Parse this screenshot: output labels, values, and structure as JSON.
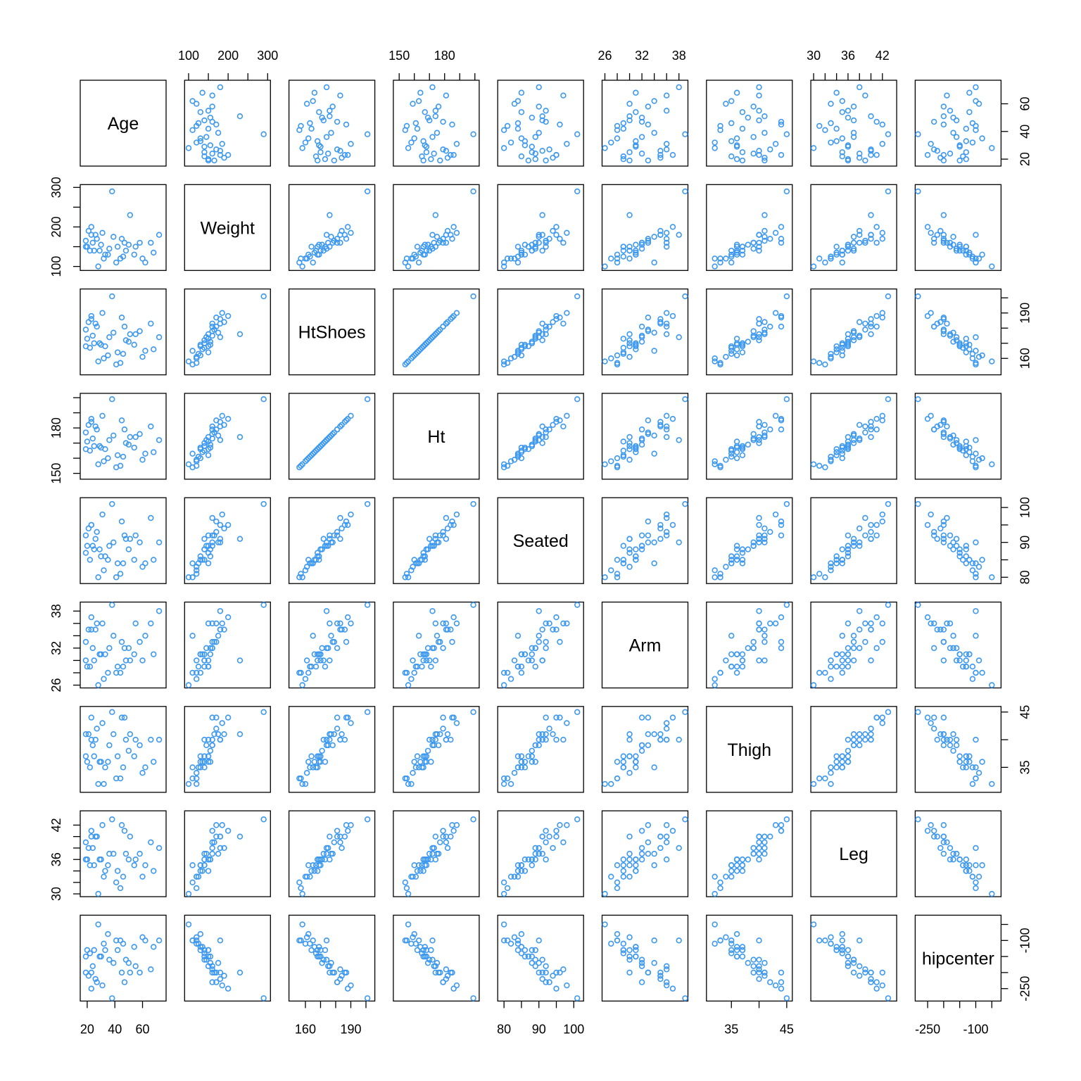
{
  "chart_data": {
    "type": "scatter",
    "variables": [
      {
        "name": "Age",
        "range": [
          17,
          75
        ],
        "ticks": [
          20,
          40,
          60
        ],
        "tick_labels": [
          "20",
          "40",
          "60"
        ]
      },
      {
        "name": "Weight",
        "range": [
          97,
          300
        ],
        "ticks": [
          100,
          150,
          200,
          250,
          300
        ],
        "tick_labels": [
          "100",
          "",
          "200",
          "",
          "300"
        ]
      },
      {
        "name": "HtShoes",
        "range": [
          151,
          204
        ],
        "ticks": [
          160,
          170,
          180,
          190,
          200
        ],
        "tick_labels": [
          "160",
          "",
          "",
          "190",
          ""
        ]
      },
      {
        "name": "Ht",
        "range": [
          148,
          201
        ],
        "ticks": [
          150,
          160,
          170,
          180,
          190,
          200
        ],
        "tick_labels": [
          "150",
          "",
          "",
          "180",
          "",
          ""
        ]
      },
      {
        "name": "Seated",
        "range": [
          79,
          102
        ],
        "ticks": [
          80,
          85,
          90,
          95,
          100
        ],
        "tick_labels": [
          "80",
          "",
          "90",
          "",
          "100"
        ]
      },
      {
        "name": "Arm",
        "range": [
          26,
          39
        ],
        "ticks": [
          26,
          28,
          30,
          32,
          34,
          36,
          38
        ],
        "tick_labels": [
          "26",
          "",
          "",
          "32",
          "",
          "",
          "38"
        ]
      },
      {
        "name": "Thigh",
        "range": [
          31,
          45.5
        ],
        "ticks": [
          35,
          40,
          45
        ],
        "tick_labels": [
          "35",
          "",
          "45"
        ]
      },
      {
        "name": "Leg",
        "range": [
          30,
          44
        ],
        "ticks": [
          30,
          32,
          34,
          36,
          38,
          40,
          42
        ],
        "tick_labels": [
          "30",
          "",
          "",
          "36",
          "",
          "",
          "42"
        ]
      },
      {
        "name": "hipcenter",
        "range": [
          -280,
          -30
        ],
        "ticks": [
          -250,
          -200,
          -150,
          -100,
          -50
        ],
        "tick_labels": [
          "-250",
          "",
          "",
          "-100",
          ""
        ]
      }
    ],
    "point_color": "#3d98f0",
    "grid": false,
    "records": [
      [
        23,
        180,
        186,
        184,
        95,
        35,
        40,
        40,
        -200
      ],
      [
        29,
        140,
        170,
        168,
        88,
        31,
        36,
        36,
        -150
      ],
      [
        44,
        120,
        157,
        155,
        81,
        28,
        33,
        31,
        -100
      ],
      [
        58,
        160,
        178,
        176,
        90,
        33,
        39,
        37,
        -200
      ],
      [
        38,
        290,
        201,
        199,
        101,
        39,
        45,
        43,
        -280
      ],
      [
        19,
        150,
        168,
        166,
        87,
        30,
        37,
        36,
        -150
      ],
      [
        62,
        110,
        165,
        163,
        84,
        34,
        35,
        35,
        -100
      ],
      [
        27,
        170,
        181,
        179,
        93,
        36,
        42,
        40,
        -230
      ],
      [
        51,
        230,
        176,
        174,
        91,
        30,
        41,
        40,
        -200
      ],
      [
        72,
        180,
        174,
        172,
        90,
        38,
        40,
        38,
        -100
      ],
      [
        25,
        140,
        170,
        168,
        88,
        30,
        37,
        35,
        -130
      ],
      [
        20,
        150,
        173,
        171,
        89,
        29,
        36,
        36,
        -130
      ],
      [
        32,
        120,
        160,
        158,
        82,
        27,
        32,
        33,
        -110
      ],
      [
        41,
        110,
        156,
        154,
        80,
        28,
        33,
        32,
        -100
      ],
      [
        47,
        160,
        181,
        179,
        92,
        32,
        44,
        41,
        -230
      ],
      [
        35,
        130,
        162,
        160,
        85,
        28,
        36,
        35,
        -80
      ],
      [
        55,
        150,
        176,
        174,
        92,
        36,
        40,
        36,
        -180
      ],
      [
        22,
        140,
        167,
        165,
        85,
        29,
        35,
        35,
        -140
      ],
      [
        30,
        155,
        169,
        167,
        86,
        31,
        36,
        36,
        -150
      ],
      [
        66,
        160,
        183,
        181,
        97,
        36,
        40,
        39,
        -190
      ],
      [
        45,
        170,
        187,
        185,
        96,
        33,
        44,
        42,
        -200
      ],
      [
        21,
        190,
        184,
        182,
        94,
        35,
        41,
        38,
        -210
      ],
      [
        28,
        100,
        158,
        156,
        80,
        26,
        32,
        30,
        -50
      ],
      [
        39,
        175,
        177,
        175,
        90,
        34,
        41,
        37,
        -170
      ],
      [
        48,
        140,
        172,
        170,
        91,
        30,
        40,
        37,
        -160
      ],
      [
        24,
        160,
        175,
        173,
        89,
        32,
        39,
        38,
        -180
      ],
      [
        33,
        130,
        168,
        166,
        86,
        31,
        35,
        34,
        -130
      ],
      [
        19,
        165,
        179,
        177,
        92,
        33,
        41,
        39,
        -200
      ],
      [
        54,
        130,
        169,
        167,
        85,
        31,
        37,
        35,
        -120
      ],
      [
        26,
        180,
        183,
        181,
        91,
        35,
        40,
        40,
        -220
      ],
      [
        42,
        150,
        164,
        162,
        84,
        29,
        37,
        34,
        -130
      ],
      [
        36,
        145,
        174,
        172,
        89,
        32,
        39,
        37,
        -160
      ],
      [
        60,
        120,
        161,
        159,
        83,
        30,
        34,
        33,
        -90
      ],
      [
        31,
        185,
        190,
        188,
        98,
        36,
        43,
        42,
        -240
      ],
      [
        50,
        155,
        171,
        169,
        88,
        32,
        38,
        36,
        -170
      ],
      [
        23,
        200,
        188,
        186,
        95,
        37,
        44,
        41,
        -250
      ],
      [
        46,
        125,
        163,
        161,
        84,
        29,
        35,
        33,
        -110
      ],
      [
        68,
        135,
        166,
        164,
        85,
        31,
        36,
        34,
        -120
      ]
    ]
  }
}
